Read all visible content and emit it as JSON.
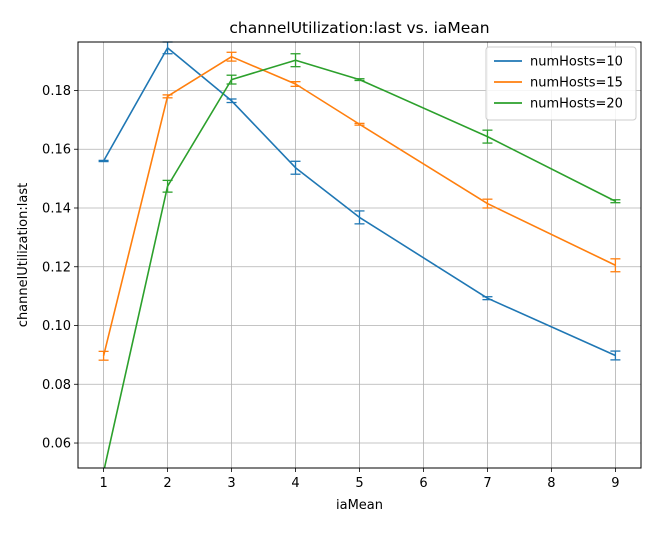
{
  "chart_data": {
    "type": "line",
    "title": "channelUtilization:last vs. iaMean",
    "xlabel": "iaMean",
    "ylabel": "channelUtilization:last",
    "xlim": [
      0.6,
      9.4
    ],
    "ylim": [
      0.0515,
      0.1965
    ],
    "xticks": [
      1,
      2,
      3,
      4,
      5,
      6,
      7,
      8,
      9
    ],
    "yticks": [
      0.06,
      0.08,
      0.1,
      0.12,
      0.14,
      0.16,
      0.18
    ],
    "ytick_labels": [
      "0.06",
      "0.08",
      "0.10",
      "0.12",
      "0.14",
      "0.16",
      "0.18"
    ],
    "grid": true,
    "legend_position": "top-right",
    "series": [
      {
        "name": "numHosts=10",
        "color": "#1f77b4",
        "x": [
          1,
          2,
          3,
          4,
          5,
          7,
          9
        ],
        "y": [
          0.156,
          0.1945,
          0.1765,
          0.1537,
          0.1368,
          0.1093,
          0.0898
        ],
        "err": [
          0.0002,
          0.002,
          0.0006,
          0.0022,
          0.0022,
          0.0005,
          0.0015
        ]
      },
      {
        "name": "numHosts=15",
        "color": "#ff7f0e",
        "x": [
          1,
          2,
          3,
          4,
          5,
          7,
          9
        ],
        "y": [
          0.0897,
          0.178,
          0.1915,
          0.1822,
          0.1685,
          0.1415,
          0.1205
        ],
        "err": [
          0.0015,
          0.0005,
          0.0015,
          0.0008,
          0.0003,
          0.0015,
          0.0022
        ]
      },
      {
        "name": "numHosts=20",
        "color": "#2ca02c",
        "x": [
          1,
          2,
          3,
          4,
          5,
          7,
          9
        ],
        "y": [
          0.0502,
          0.1474,
          0.1837,
          0.1903,
          0.1837,
          0.1643,
          0.1423
        ],
        "err": [
          0.0,
          0.002,
          0.0015,
          0.0022,
          0.0003,
          0.0022,
          0.0005
        ]
      }
    ]
  }
}
